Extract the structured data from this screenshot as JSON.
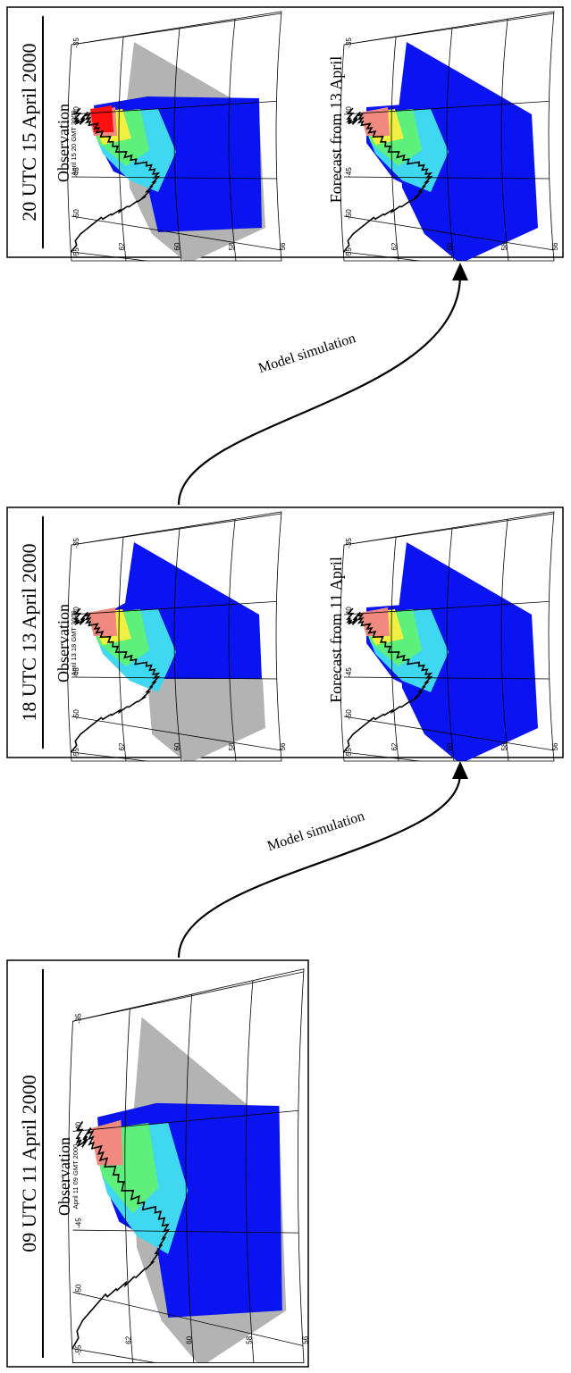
{
  "panels": [
    {
      "title": "20 UTC 15 April 2000",
      "maps": [
        {
          "title": "Observation",
          "subtitle": "April 15 20 GMT 2000"
        },
        {
          "title": "Forecast from 13 April"
        }
      ]
    },
    {
      "title": "18 UTC 13 April 2000",
      "maps": [
        {
          "title": "Observation",
          "subtitle": "April 13 18 GMT 2000"
        },
        {
          "title": "Forecast from 11 April"
        }
      ]
    },
    {
      "title": "09 UTC 11 April 2000",
      "maps": [
        {
          "title": "Observation",
          "subtitle": "April 11 09 GMT 2000"
        }
      ]
    }
  ],
  "arrows": [
    {
      "label": "Model simulation"
    },
    {
      "label": "Model simulation"
    }
  ],
  "map_labels": {
    "longitude": [
      -55,
      -50,
      -45,
      -40,
      -35
    ],
    "latitude": [
      62,
      60,
      58,
      56
    ]
  }
}
